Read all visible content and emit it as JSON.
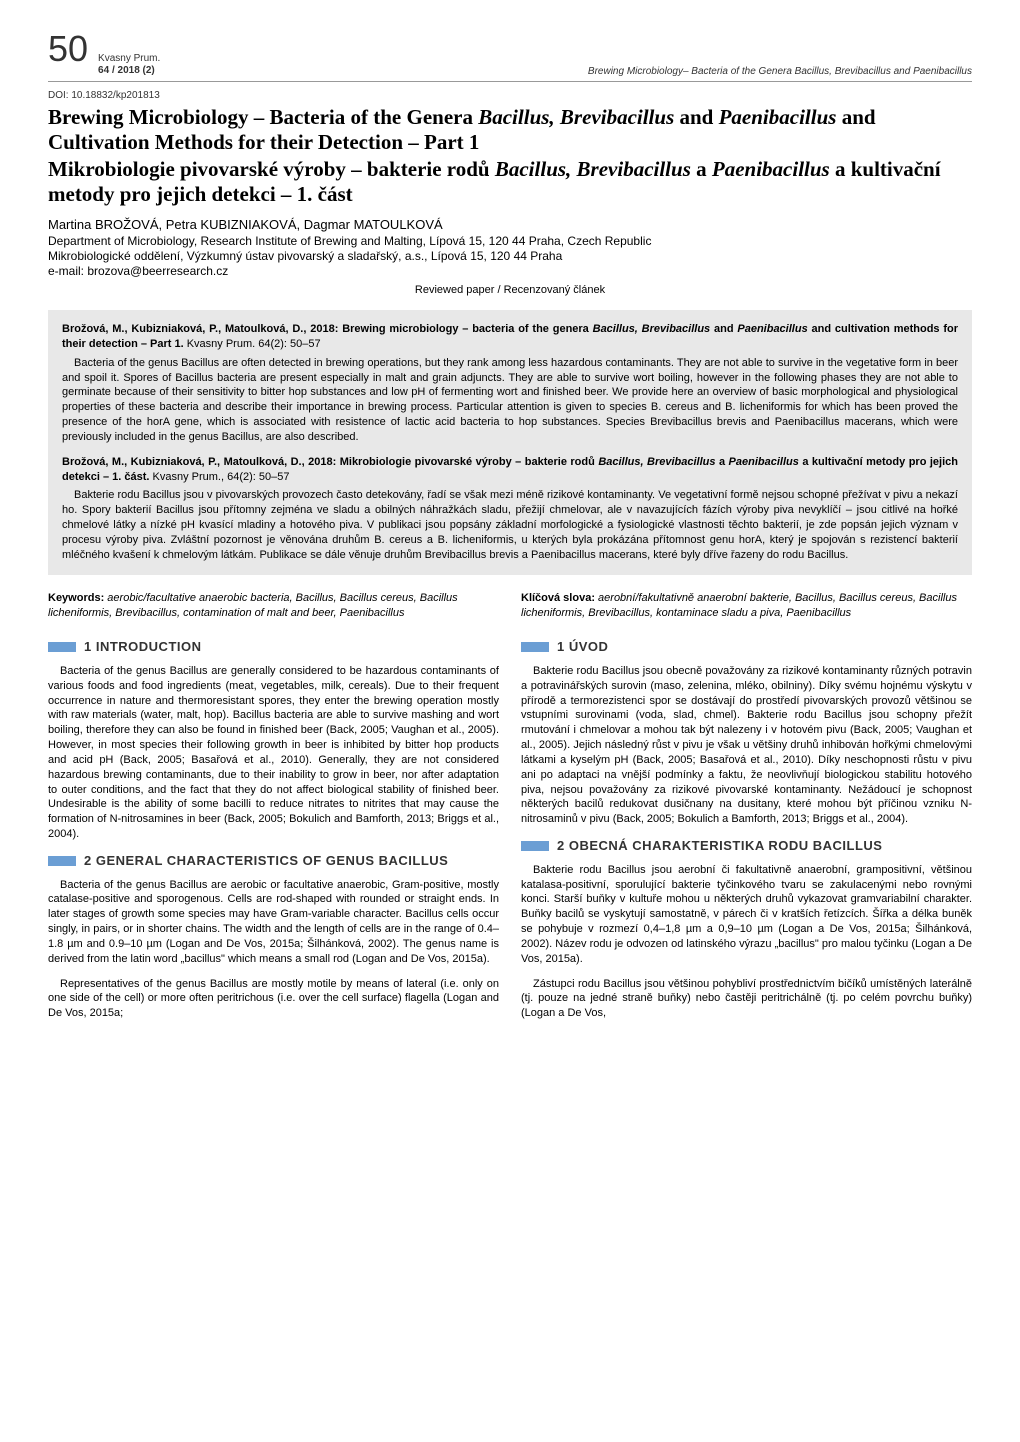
{
  "header": {
    "page_number": "50",
    "journal_name": "Kvasny Prum.",
    "journal_issue": "64 / 2018 (2)",
    "running_title": "Brewing Microbiology– Bacteria of the Genera Bacillus, Brevibacillus and Paenibacillus"
  },
  "doi": "DOI: 10.18832/kp201813",
  "title_en_1": "Brewing Microbiology – Bacteria of the Genera ",
  "title_en_ital1": "Bacillus, Brevibacillus",
  "title_en_2": " and ",
  "title_en_ital2": "Paenibacillus",
  "title_en_3": " and Cultivation Methods for their Detection – Part 1",
  "title_cz_1": "Mikrobiologie pivovarské výroby – bakterie rodů ",
  "title_cz_ital1": "Bacillus, Brevibacillus",
  "title_cz_2": " a ",
  "title_cz_ital2": "Paenibacillus",
  "title_cz_3": " a kultivační metody pro jejich detekci – 1. část",
  "authors": "Martina BROŽOVÁ, Petra KUBIZNIAKOVÁ, Dagmar MATOULKOVÁ",
  "affiliation_en": "Department of Microbiology, Research Institute of Brewing and Malting, Lípová 15, 120 44 Praha, Czech Republic",
  "affiliation_cz": "Mikrobiologické oddělení, Výzkumný ústav pivovarský a sladařský, a.s., Lípová 15, 120 44 Praha",
  "email": "e-mail: brozova@beerresearch.cz",
  "reviewed": "Reviewed paper / Recenzovaný článek",
  "abstract": {
    "cite_en_bold": "Brožová, M., Kubizniaková, P., Matoulková, D., 2018: Brewing microbiology – bacteria of the genera ",
    "cite_en_ital": "Bacillus, Brevibacillus",
    "cite_en_bold2": " and ",
    "cite_en_ital2": "Paenibacillus",
    "cite_en_bold3": " and cultivation methods for their detection – Part 1.",
    "cite_en_tail": " Kvasny Prum. 64(2): 50–57",
    "body_en": "Bacteria of the genus Bacillus are often detected in brewing operations, but they rank among less hazardous contaminants. They are not able to survive in the vegetative form in beer and spoil it. Spores of Bacillus bacteria are present especially in malt and grain adjuncts. They are able to survive wort boiling, however in the following phases they are not able to germinate because of their sensitivity to bitter hop substances and low pH of fermenting wort and finished beer. We provide here an overview of basic morphological and physiological properties of these bacteria and describe their importance in brewing process. Particular attention is given to species B. cereus and B. licheniformis for which has been proved the presence of the horA gene, which is associated with resistence of lactic acid bacteria to hop substances. Species Brevibacillus brevis and Paenibacillus macerans, which were previously included in the genus Bacillus, are also described.",
    "cite_cz_bold": "Brožová, M., Kubizniaková, P., Matoulková, D., 2018: Mikrobiologie pivovarské výroby – bakterie rodů ",
    "cite_cz_ital": "Bacillus, Brevibacillus",
    "cite_cz_bold2": " a ",
    "cite_cz_ital2": "Paenibacillus",
    "cite_cz_bold3": " a kultivační metody pro jejich detekci – 1. část.",
    "cite_cz_tail": " Kvasny Prum., 64(2): 50–57",
    "body_cz": "Bakterie rodu Bacillus jsou v pivovarských provozech často detekovány, řadí se však mezi méně rizikové kontaminanty. Ve vegetativní formě nejsou schopné přežívat v pivu a nekazí ho. Spory bakterií Bacillus jsou přítomny zejména ve sladu a obilných náhražkách sladu, přežijí chmelovar, ale v navazujících fázích výroby piva nevyklíčí – jsou citlivé na hořké chmelové látky a nízké pH kvasící mladiny a hotového piva. V publikaci jsou popsány základní morfologické a fysiologické vlastnosti těchto bakterií, je zde popsán jejich význam v procesu výroby piva. Zvláštní pozornost je věnována druhům B. cereus a B. licheniformis, u kterých byla prokázána přítomnost genu horA, který je spojován s rezistencí bakterií mléčného kvašení k chmelovým látkám. Publikace se dále věnuje druhům Brevibacillus brevis a Paenibacillus macerans, které byly dříve řazeny do rodu Bacillus."
  },
  "left": {
    "keywords_label": "Keywords:",
    "keywords": " aerobic/facultative anaerobic bacteria, Bacillus, Bacillus cereus, Bacillus licheniformis, Brevibacillus, contamination of malt and beer, Paenibacillus",
    "sec1_title": "1 INTRODUCTION",
    "sec1_p1": "Bacteria of the genus Bacillus are generally considered to be hazardous contaminants of various foods and food ingredients (meat, vegetables, milk, cereals). Due to their frequent occurrence in nature and thermoresistant spores, they enter the brewing operation mostly with raw materials (water, malt, hop). Bacillus bacteria are able to survive mashing and wort boiling, therefore they can also be found in finished beer (Back, 2005; Vaughan et al., 2005). However, in most species their following growth in beer is inhibited by bitter hop products and acid pH (Back, 2005; Basařová et al., 2010). Generally, they are not considered hazardous brewing contaminants, due to their inability to grow in beer, nor after adaptation to outer conditions, and the fact that they do not affect biological stability of finished beer. Undesirable is the ability of some bacilli to reduce nitrates to nitrites that may cause the formation of N-nitrosamines in beer (Back, 2005; Bokulich and Bamforth, 2013; Briggs et al., 2004).",
    "sec2_title": "2 GENERAL CHARACTERISTICS OF GENUS BACILLUS",
    "sec2_p1": "Bacteria of the genus Bacillus are aerobic or facultative anaerobic, Gram-positive, mostly catalase-positive and sporogenous. Cells are rod-shaped with rounded or straight ends. In later stages of growth some species may have Gram-variable character. Bacillus cells occur singly, in pairs, or in shorter chains. The width and the length of cells are in the range of 0.4–1.8 µm and 0.9–10 µm (Logan and De Vos, 2015a; Šilhánková, 2002). The genus name is derived from the latin word „bacillus\" which means a small rod (Logan and De Vos, 2015a).",
    "sec2_p2": "Representatives of the genus Bacillus are mostly motile by means of lateral (i.e. only on one side of the cell) or more often peritrichous (i.e. over the cell surface) flagella (Logan and De Vos, 2015a;"
  },
  "right": {
    "keywords_label": "Klíčová slova:",
    "keywords": " aerobní/fakultativně anaerobní bakterie, Bacillus, Bacillus cereus, Bacillus licheniformis, Brevibacillus, kontaminace sladu a piva, Paenibacillus",
    "sec1_title": "1 ÚVOD",
    "sec1_p1": "Bakterie rodu Bacillus jsou obecně považovány za rizikové kontaminanty různých potravin a potravinářských surovin (maso, zelenina, mléko, obilniny). Díky svému hojnému výskytu v přírodě a termorezistenci spor se dostávají do prostředí pivovarských provozů většinou se vstupními surovinami (voda, slad, chmel). Bakterie rodu Bacillus jsou schopny přežít rmutování i chmelovar a mohou tak být nalezeny i v hotovém pivu (Back, 2005; Vaughan et al., 2005). Jejich následný růst v pivu je však u většiny druhů inhibován hořkými chmelovými látkami a kyselým pH (Back, 2005; Basařová et al., 2010). Díky neschopnosti růstu v pivu ani po adaptaci na vnější podmínky a faktu, že neovlivňují biologickou stabilitu hotového piva, nejsou považovány za rizikové pivovarské kontaminanty. Nežádoucí je schopnost některých bacilů redukovat dusičnany na dusitany, které mohou být příčinou vzniku N-nitrosaminů v pivu (Back, 2005; Bokulich a Bamforth, 2013; Briggs et al., 2004).",
    "sec2_title": "2 OBECNÁ CHARAKTERISTIKA RODU BACILLUS",
    "sec2_p1": "Bakterie rodu Bacillus jsou aerobní či fakultativně anaerobní, grampositivní, většinou katalasa-positivní, sporulující bakterie tyčinkového tvaru se zakulacenými nebo rovnými konci. Starší buňky v kultuře mohou u některých druhů vykazovat gramvariabilní charakter. Buňky bacilů se vyskytují samostatně, v párech či v kratších řetízcích. Šířka a délka buněk se pohybuje v rozmezí 0,4–1,8 µm a 0,9–10 µm (Logan a De Vos, 2015a; Šilhánková, 2002). Název rodu je odvozen od latinského výrazu „bacillus\" pro malou tyčinku (Logan a De Vos, 2015a).",
    "sec2_p2": "Zástupci rodu Bacillus jsou většinou pohybliví prostřednictvím bičíků umístěných laterálně (tj. pouze na jedné straně buňky) nebo častěji peritrichálně (tj. po celém povrchu buňky) (Logan a De Vos,"
  },
  "colors": {
    "blue_bar": "#6b9ed4",
    "abstract_bg": "#e8e8e8"
  }
}
